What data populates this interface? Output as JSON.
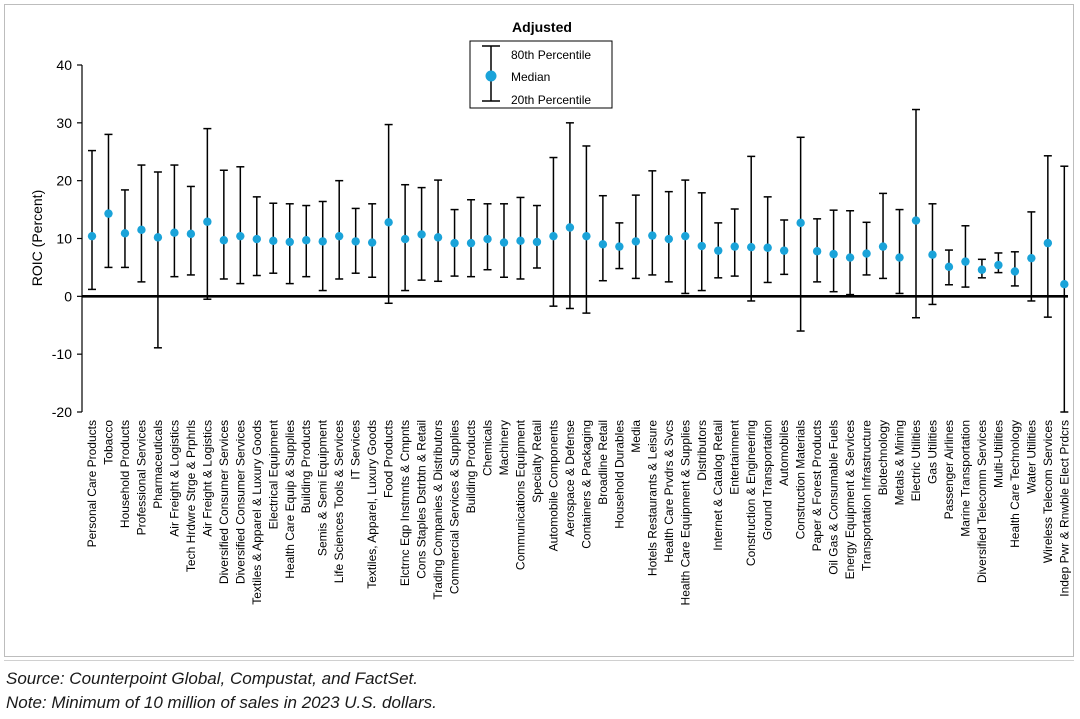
{
  "chart_data": {
    "type": "errorbar",
    "title": "Adjusted",
    "ylabel": "ROIC (Percent)",
    "xlabel": "",
    "ylim": [
      -20,
      40
    ],
    "yticks": [
      -20,
      -10,
      0,
      10,
      20,
      30,
      40
    ],
    "legend": {
      "position": "top-center",
      "entries": [
        "80th Percentile",
        "Median",
        "20th Percentile"
      ]
    },
    "colors": {
      "median": "#1aa3d9",
      "whisker": "#000000",
      "zero_line": "#000000"
    },
    "categories": [
      "Personal Care Products",
      "Tobacco",
      "Household Products",
      "Professional Services",
      "Pharmaceuticals",
      "Air Freight & Logistics",
      "Tech Hrdwre Strge & Prphrls",
      "Air Freight & Logistics",
      "Diversified Consumer Services",
      "Diversified Consumer Services",
      "Textiles & Apparel & Luxury Goods",
      "Electrical Equipment",
      "Health Care Equip & Supplies",
      "Building Products",
      "Semis & Semi Equipment",
      "Life Sciences Tools & Services",
      "IT Services",
      "Textiles, Apparel, Luxury Goods",
      "Food Products",
      "Elctrnc Eqp Instmnts & Cmpnts",
      "Cons Staples Dstrbtn & Retail",
      "Trading Companies & Distributors",
      "Commercial Services & Supplies",
      "Building Products",
      "Chemicals",
      "Machinery",
      "Communications Equipment",
      "Specialty Retail",
      "Automobile Components",
      "Aerospace & Defense",
      "Containers & Packaging",
      "Broadline Retail",
      "Household Durables",
      "Media",
      "Hotels Restaurants & Leisure",
      "Health Care Prvdrs & Svcs",
      "Health Care Equipment & Supplies",
      "Distributors",
      "Internet & Catalog Retail",
      "Entertainment",
      "Construction & Engineering",
      "Ground Transportation",
      "Automobiles",
      "Construction Materials",
      "Paper & Forest Products",
      "Oil Gas & Consumable Fuels",
      "Energy Equipment & Services",
      "Transportation Infrastructure",
      "Biotechnology",
      "Metals & Mining",
      "Electric Utilities",
      "Gas Utilities",
      "Passenger Airlines",
      "Marine Transportation",
      "Diversified Telecomm Services",
      "Multi-Utilities",
      "Health Care Technology",
      "Water Utilities",
      "Wireless Telecom Services",
      "Indep Pwr & Rnwble Elect Prdcrs"
    ],
    "p80": [
      25.2,
      28.0,
      18.4,
      22.7,
      21.5,
      22.7,
      19.0,
      29.0,
      21.8,
      22.4,
      17.2,
      16.1,
      16.0,
      15.7,
      16.4,
      20.0,
      15.2,
      16.0,
      29.7,
      19.3,
      18.8,
      20.1,
      15.0,
      16.7,
      16.0,
      16.0,
      17.1,
      15.7,
      24.0,
      30.0,
      26.0,
      17.4,
      12.7,
      17.5,
      21.7,
      18.1,
      20.1,
      17.9,
      12.7,
      15.1,
      24.2,
      17.2,
      13.2,
      27.5,
      13.4,
      14.9,
      14.8,
      12.8,
      17.8,
      15.0,
      32.3,
      16.0,
      8.0,
      12.2,
      6.4,
      7.5,
      7.7,
      14.6,
      24.3,
      22.5
    ],
    "median": [
      10.4,
      14.3,
      10.9,
      11.5,
      10.2,
      11.0,
      10.8,
      12.9,
      9.7,
      10.4,
      9.9,
      9.6,
      9.4,
      9.7,
      9.5,
      10.4,
      9.5,
      9.3,
      12.8,
      9.9,
      10.7,
      10.2,
      9.2,
      9.2,
      9.9,
      9.3,
      9.6,
      9.4,
      10.4,
      11.9,
      10.4,
      9.0,
      8.6,
      9.5,
      10.5,
      9.9,
      10.4,
      8.7,
      7.9,
      8.6,
      8.5,
      8.4,
      7.9,
      12.7,
      7.8,
      7.3,
      6.7,
      7.4,
      8.6,
      6.7,
      13.1,
      7.2,
      5.1,
      6.0,
      4.6,
      5.4,
      4.3,
      6.6,
      9.2,
      2.1
    ],
    "p20": [
      1.2,
      5.0,
      5.0,
      2.5,
      -8.9,
      3.4,
      3.7,
      -0.5,
      3.0,
      2.2,
      3.6,
      4.0,
      2.2,
      3.4,
      1.0,
      3.0,
      4.0,
      3.3,
      -1.2,
      1.0,
      2.8,
      2.6,
      3.5,
      3.4,
      4.6,
      3.3,
      3.0,
      4.9,
      -1.7,
      -2.1,
      -2.9,
      2.7,
      4.8,
      3.1,
      3.7,
      2.5,
      0.5,
      1.0,
      3.2,
      3.5,
      -0.8,
      2.4,
      3.8,
      -6.0,
      2.5,
      0.8,
      0.3,
      3.7,
      3.1,
      0.5,
      -3.7,
      -1.4,
      2.0,
      1.6,
      3.2,
      4.1,
      1.8,
      -0.8,
      -3.6,
      -20.0
    ]
  },
  "footer": {
    "source": "Source: Counterpoint Global, Compustat, and FactSet.",
    "note": "Note: Minimum of 10 million of sales in 2023 U.S. dollars."
  }
}
